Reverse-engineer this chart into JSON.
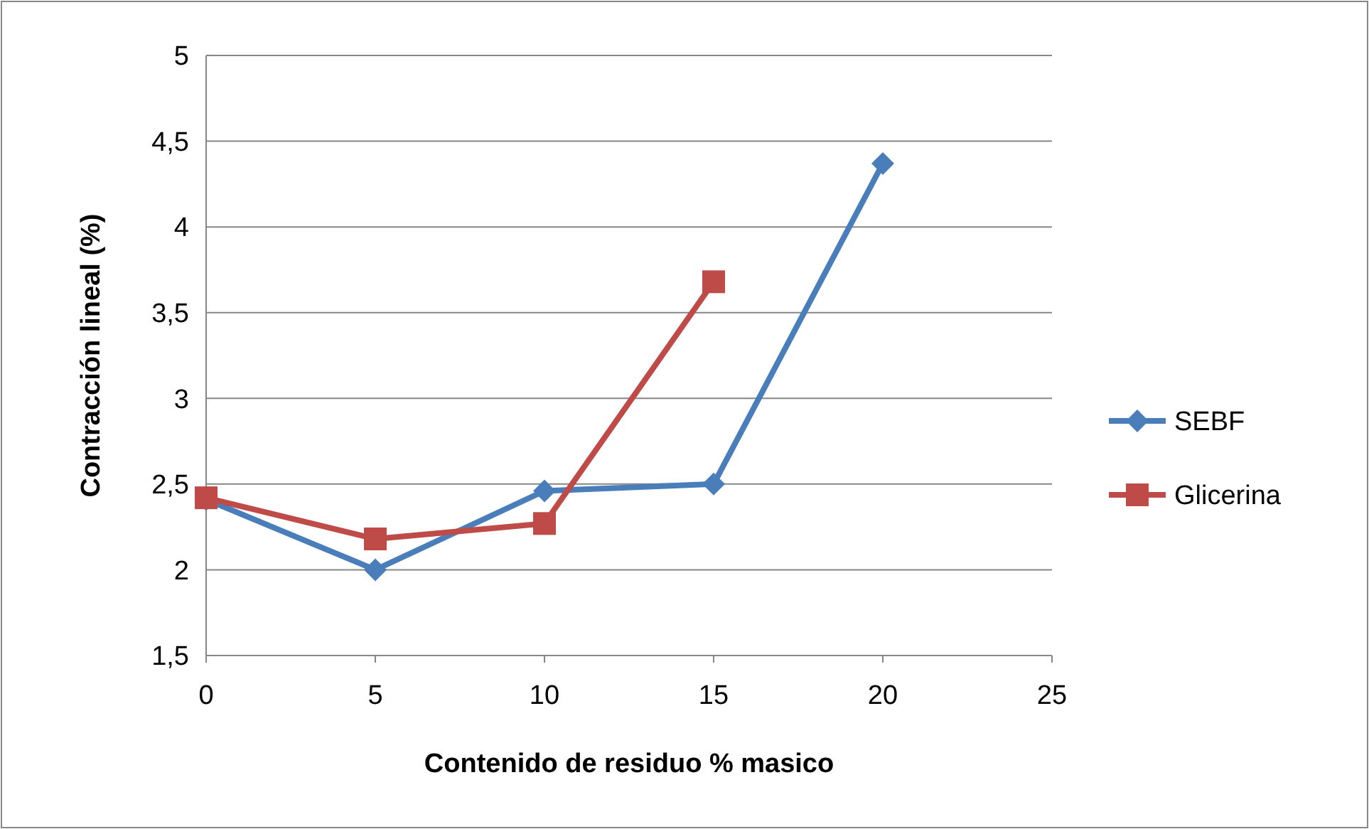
{
  "chart_data": {
    "type": "line",
    "xlabel": "Contenido de residuo % masico",
    "ylabel": "Contracción lineal (%)",
    "xlim": [
      0,
      25
    ],
    "xticks": [
      0,
      5,
      10,
      15,
      20,
      25
    ],
    "ylim": [
      1.5,
      5
    ],
    "yticks": [
      {
        "value": 1.5,
        "label": "1,5"
      },
      2,
      {
        "value": 2.5,
        "label": "2,5"
      },
      3,
      {
        "value": 3.5,
        "label": "3,5"
      },
      4,
      {
        "value": 4.5,
        "label": "4,5"
      },
      5
    ],
    "grid": "y",
    "legend": "right",
    "series": [
      {
        "name": "SEBF",
        "color": "#4a7ebb",
        "marker": "diamond",
        "x": [
          0,
          5,
          10,
          15,
          20
        ],
        "values": [
          2.41,
          2.0,
          2.46,
          2.5,
          4.37
        ]
      },
      {
        "name": "Glicerina",
        "color": "#be4b48",
        "marker": "square",
        "x": [
          0,
          5,
          10,
          15
        ],
        "values": [
          2.42,
          2.18,
          2.27,
          3.68
        ]
      }
    ]
  }
}
